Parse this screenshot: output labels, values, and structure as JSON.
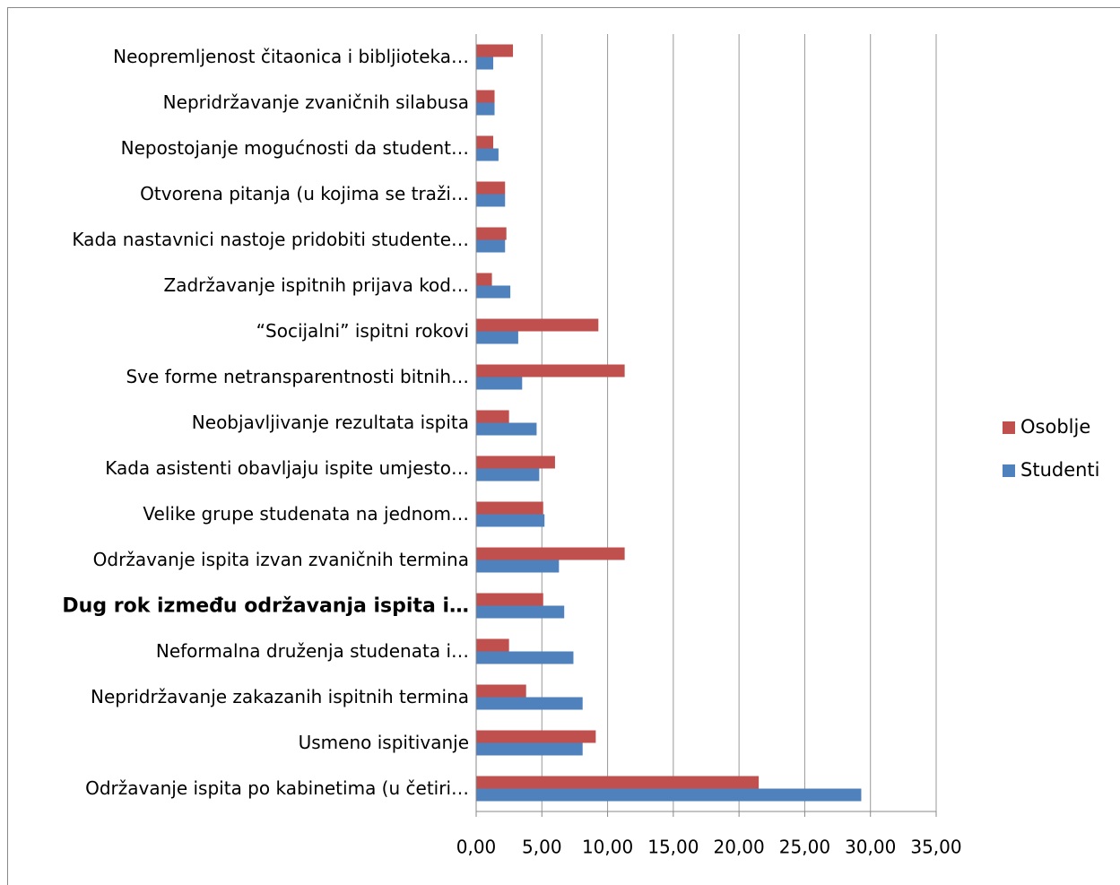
{
  "chart_data": {
    "type": "barh",
    "categories": [
      "Neopremljenost čitaonica i bibljioteka…",
      "Nepridržavanje zvaničnih silabusa",
      "Nepostojanje mogućnosti da student…",
      "Otvorena pitanja  (u kojima se traži…",
      "Kada nastavnici nastoje pridobiti studente…",
      "Zadržavanje ispitnih prijava kod…",
      "“Socijalni”  ispitni rokovi",
      "Sve forme netransparentnosti bitnih…",
      "Neobjavljivanje rezultata ispita",
      "Kada asistenti obavljaju ispite umjesto…",
      "Velike grupe studenata na jednom…",
      "Održavanje ispita izvan zvaničnih termina",
      "Dug rok između održavanja ispita i…",
      "Neformalna druženja studenata i…",
      "Nepridržavanje zakazanih ispitnih termina",
      "Usmeno ispitivanje",
      "Održavanje ispita po kabinetima (u četiri…"
    ],
    "series": [
      {
        "name": "Osoblje",
        "color": "#c0504d",
        "values": [
          2.8,
          1.4,
          1.3,
          2.2,
          2.3,
          1.2,
          9.3,
          11.3,
          2.5,
          6.0,
          5.1,
          11.3,
          5.1,
          2.5,
          3.8,
          9.1,
          21.5
        ]
      },
      {
        "name": "Studenti",
        "color": "#4f81bd",
        "values": [
          1.3,
          1.4,
          1.7,
          2.2,
          2.2,
          2.6,
          3.2,
          3.5,
          4.6,
          4.8,
          5.2,
          6.3,
          6.7,
          7.4,
          8.1,
          8.1,
          29.3
        ]
      }
    ],
    "xlim": [
      0,
      35
    ],
    "xticks": [
      {
        "value": 0,
        "label": "0,00"
      },
      {
        "value": 5,
        "label": "5,00"
      },
      {
        "value": 10,
        "label": "10,00"
      },
      {
        "value": 15,
        "label": "15,00"
      },
      {
        "value": 20,
        "label": "20,00"
      },
      {
        "value": 25,
        "label": "25,00"
      },
      {
        "value": 30,
        "label": "30,00"
      },
      {
        "value": 35,
        "label": "35,00"
      }
    ],
    "grid": true,
    "legend": "right"
  }
}
